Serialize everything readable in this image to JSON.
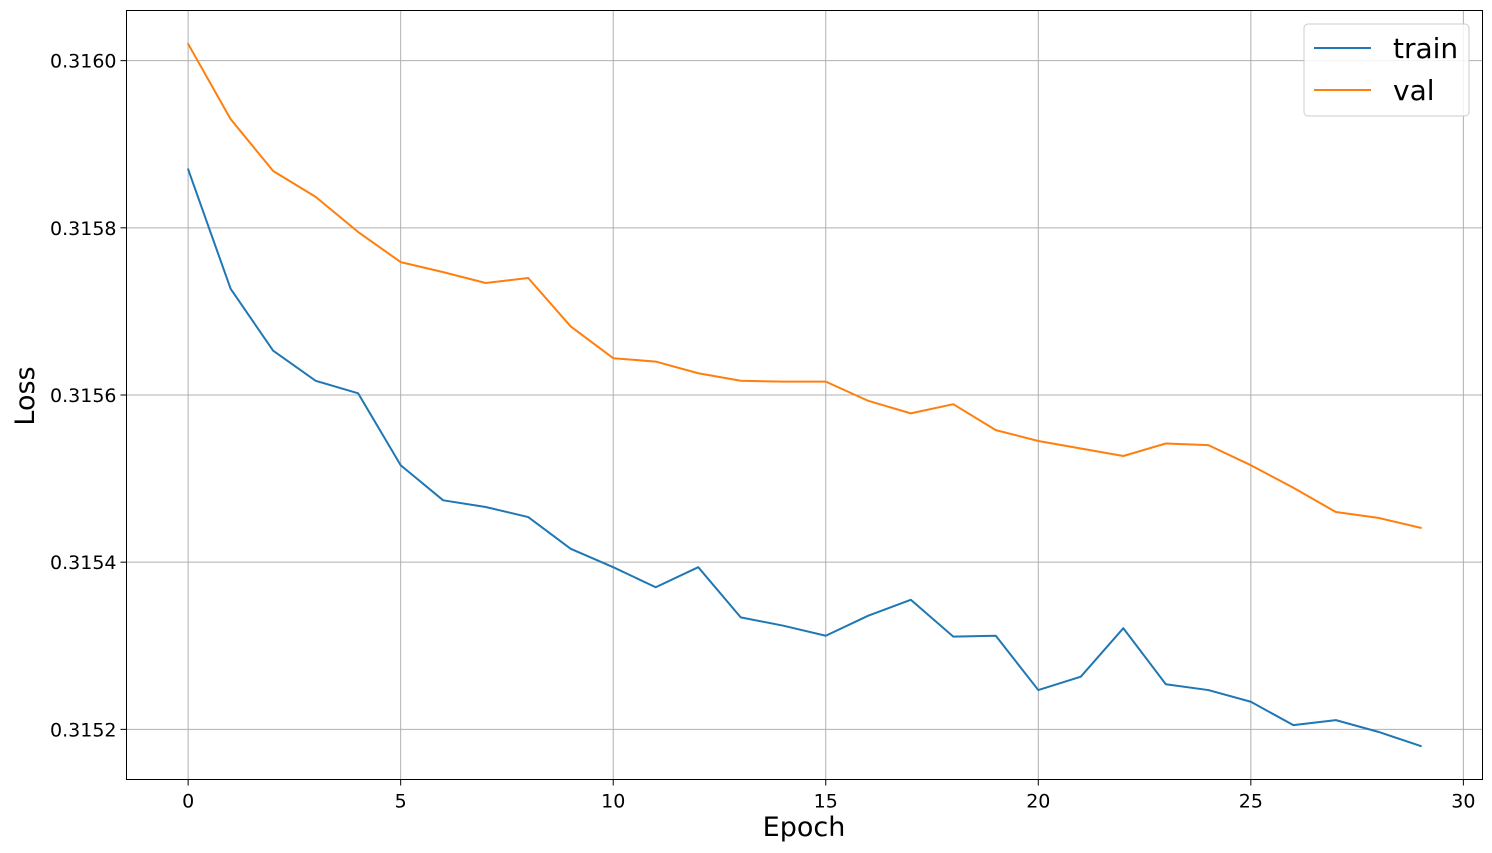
{
  "chart_data": {
    "type": "line",
    "title": "",
    "xlabel": "Epoch",
    "ylabel": "Loss",
    "xlim": [
      -1.45,
      30.45
    ],
    "ylim": [
      0.31514,
      0.31606
    ],
    "xticks": [
      0,
      5,
      10,
      15,
      20,
      25,
      30
    ],
    "xtick_labels": [
      "0",
      "5",
      "10",
      "15",
      "20",
      "25",
      "30"
    ],
    "yticks": [
      0.3152,
      0.3154,
      0.3156,
      0.3158,
      0.316
    ],
    "ytick_labels": [
      "0.3152",
      "0.3154",
      "0.3156",
      "0.3158",
      "0.3160"
    ],
    "grid": true,
    "legend_position": "top-right",
    "x": [
      0,
      1,
      2,
      3,
      4,
      5,
      6,
      7,
      8,
      9,
      10,
      11,
      12,
      13,
      14,
      15,
      16,
      17,
      18,
      19,
      20,
      21,
      22,
      23,
      24,
      25,
      26,
      27,
      28,
      29
    ],
    "series": [
      {
        "name": "train",
        "color": "#1f77b4",
        "values": [
          0.31587,
          0.315727,
          0.315653,
          0.315617,
          0.315602,
          0.315516,
          0.315474,
          0.315466,
          0.315454,
          0.315416,
          0.315394,
          0.31537,
          0.315394,
          0.315334,
          0.315324,
          0.315312,
          0.315336,
          0.315355,
          0.315311,
          0.315312,
          0.315247,
          0.315263,
          0.315321,
          0.315254,
          0.315247,
          0.315233,
          0.315205,
          0.315211,
          0.315197,
          0.31518
        ]
      },
      {
        "name": "val",
        "color": "#ff7f0e",
        "values": [
          0.31602,
          0.31593,
          0.315868,
          0.315837,
          0.315795,
          0.315759,
          0.315747,
          0.315734,
          0.31574,
          0.315682,
          0.315644,
          0.31564,
          0.315626,
          0.315617,
          0.315616,
          0.315616,
          0.315593,
          0.315578,
          0.315589,
          0.315558,
          0.315545,
          0.315536,
          0.315527,
          0.315542,
          0.31554,
          0.315516,
          0.315489,
          0.31546,
          0.315453,
          0.315441
        ]
      }
    ]
  }
}
